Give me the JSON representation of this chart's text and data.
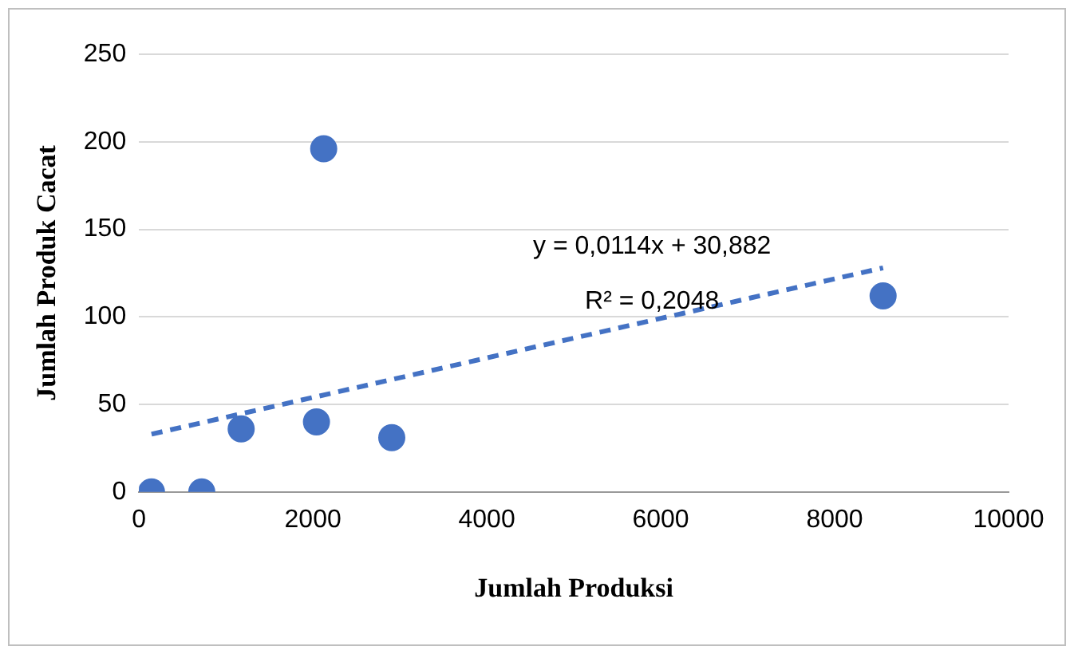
{
  "chart_data": {
    "type": "scatter",
    "xlabel": "Jumlah Produksi",
    "ylabel": "Jumlah Produk Cacat",
    "xlim": [
      0,
      10000
    ],
    "xticks": [
      0,
      2000,
      4000,
      6000,
      8000,
      10000
    ],
    "ylim": [
      0,
      250
    ],
    "yticks": [
      0,
      50,
      100,
      150,
      200,
      250
    ],
    "grid": "y",
    "legend": false,
    "series": [
      {
        "type": "scatter",
        "marker": "circle",
        "color": "#4472c4",
        "x": [
          144,
          722,
          1175,
          2041,
          2124,
          2907,
          8557
        ],
        "values": [
          0,
          0,
          36,
          40,
          196,
          31,
          112
        ]
      },
      {
        "type": "line",
        "marker": "none",
        "color": "#4472c4",
        "line_style": "dashed",
        "x": [
          144,
          8557
        ],
        "values": [
          33,
          128
        ]
      }
    ],
    "annotations": [
      "y = 0,0114x + 30,882",
      "R² = 0,2048"
    ]
  }
}
